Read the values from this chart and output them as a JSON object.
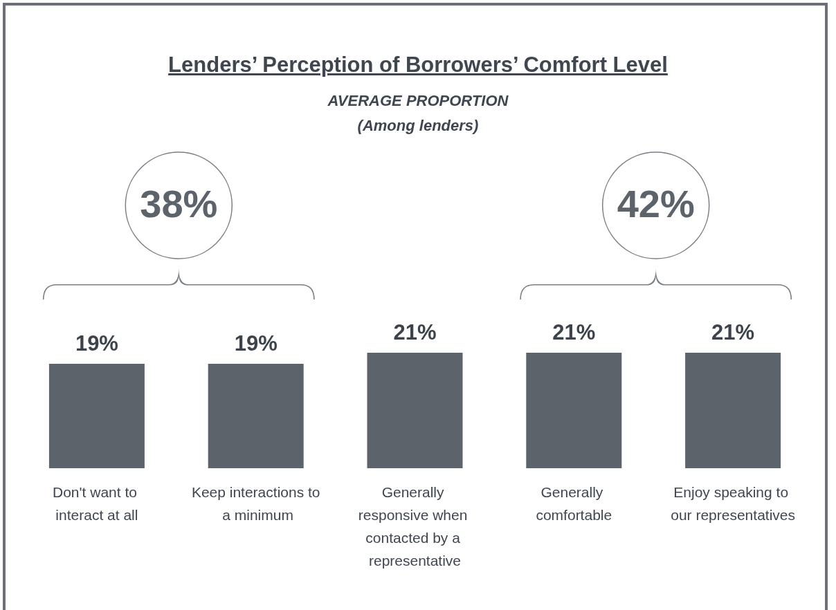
{
  "chart_data": {
    "type": "bar",
    "title": "Lenders’ Perception of Borrowers’ Comfort Level",
    "subtitle": "AVERAGE PROPORTION\n(Among lenders)",
    "categories": [
      "Don't want to interact at all",
      "Keep interactions to a minimum",
      "Generally responsive when contacted by a representative",
      "Generally comfortable",
      "Enjoy speaking to our representatives"
    ],
    "values": [
      19,
      19,
      21,
      21,
      21
    ],
    "color": "#5c636b",
    "annotations": [
      "38%",
      "42%"
    ],
    "value_labels": [
      "19%",
      "19%",
      "21%",
      "21%",
      "21%"
    ]
  }
}
